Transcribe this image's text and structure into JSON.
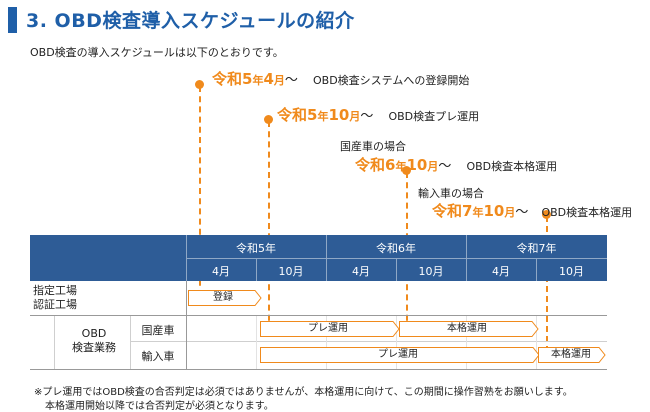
{
  "header": {
    "title": "3.  OBD検査導入スケジュールの紹介"
  },
  "intro": "OBD検査の導入スケジュールは以下のとおりです。",
  "milestones": [
    {
      "era": "令和",
      "year": "5",
      "year_unit": "年",
      "month": "4",
      "month_unit": "月",
      "tilde": "～",
      "text": "OBD検査システムへの登録開始",
      "sub": ""
    },
    {
      "era": "令和",
      "year": "5",
      "year_unit": "年",
      "month": "10",
      "month_unit": "月",
      "tilde": "～",
      "text": "OBD検査プレ運用",
      "sub": ""
    },
    {
      "era": "令和",
      "year": "6",
      "year_unit": "年",
      "month": "10",
      "month_unit": "月",
      "tilde": "～",
      "text": "OBD検査本格運用",
      "sub": "国産車の場合"
    },
    {
      "era": "令和",
      "year": "7",
      "year_unit": "年",
      "month": "10",
      "month_unit": "月",
      "tilde": "～",
      "text": "OBD検査本格運用",
      "sub": "輸入車の場合"
    }
  ],
  "table": {
    "years": [
      "令和5年",
      "令和6年",
      "令和7年"
    ],
    "months": [
      "4月",
      "10月",
      "4月",
      "10月",
      "4月",
      "10月"
    ],
    "row1_label": "指定工場\n認証工場",
    "group_label": "OBD\n検査業務",
    "row2_label": "国産車",
    "row3_label": "輸入車",
    "bars": {
      "registration": "登録",
      "domestic_pre": "プレ運用",
      "domestic_full": "本格運用",
      "import_pre": "プレ運用",
      "import_full": "本格運用"
    }
  },
  "notes": [
    "※プレ運用ではOBD検査の合否判定は必須ではありませんが、本格運用に向けて、この期間に操作習熟をお願いします。",
    "本格運用開始以降では合否判定が必須となります。"
  ],
  "colors": {
    "accent": "#f08a1c",
    "header_bg": "#2e5c96",
    "title": "#1f5fa8"
  }
}
